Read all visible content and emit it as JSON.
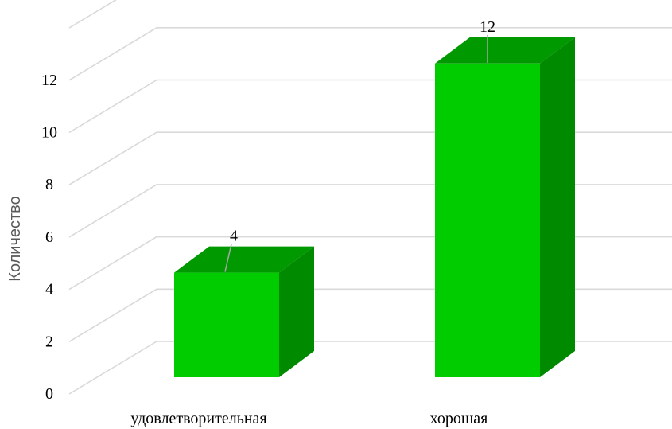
{
  "chart_data": {
    "type": "bar",
    "style": "3d-column",
    "categories": [
      "удовлетворительная",
      "хорошая"
    ],
    "values": [
      4,
      12
    ],
    "data_labels": [
      "4",
      "12"
    ],
    "ylabel": "Количество",
    "xlabel": "",
    "ylim": [
      0,
      14
    ],
    "yticks": [
      0,
      2,
      4,
      6,
      8,
      10,
      12
    ],
    "ytick_labels": [
      "0",
      "2",
      "4",
      "6",
      "8",
      "10",
      "12"
    ],
    "grid": true,
    "legend": "none",
    "colors": {
      "front": "#00cc00",
      "top": "#009900",
      "side": "#008a00",
      "grid": "#d9d9d9",
      "leader": "#a6a6a6"
    }
  }
}
